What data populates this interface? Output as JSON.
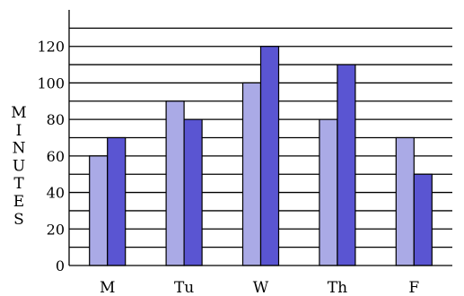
{
  "chart_data": {
    "type": "bar",
    "title": "",
    "xlabel": "",
    "ylabel": "MINUTES",
    "ylabel_orientation": "vertical-stacked",
    "categories": [
      "M",
      "Tu",
      "W",
      "Th",
      "F"
    ],
    "series": [
      {
        "values": [
          60,
          90,
          100,
          80,
          70
        ]
      },
      {
        "values": [
          70,
          80,
          120,
          110,
          50
        ]
      }
    ],
    "colors": [
      "#aaaae6",
      "#5a55d2"
    ],
    "ylim": [
      0,
      140
    ],
    "yticks": [
      0,
      20,
      40,
      60,
      80,
      100,
      120
    ],
    "grid": true
  }
}
